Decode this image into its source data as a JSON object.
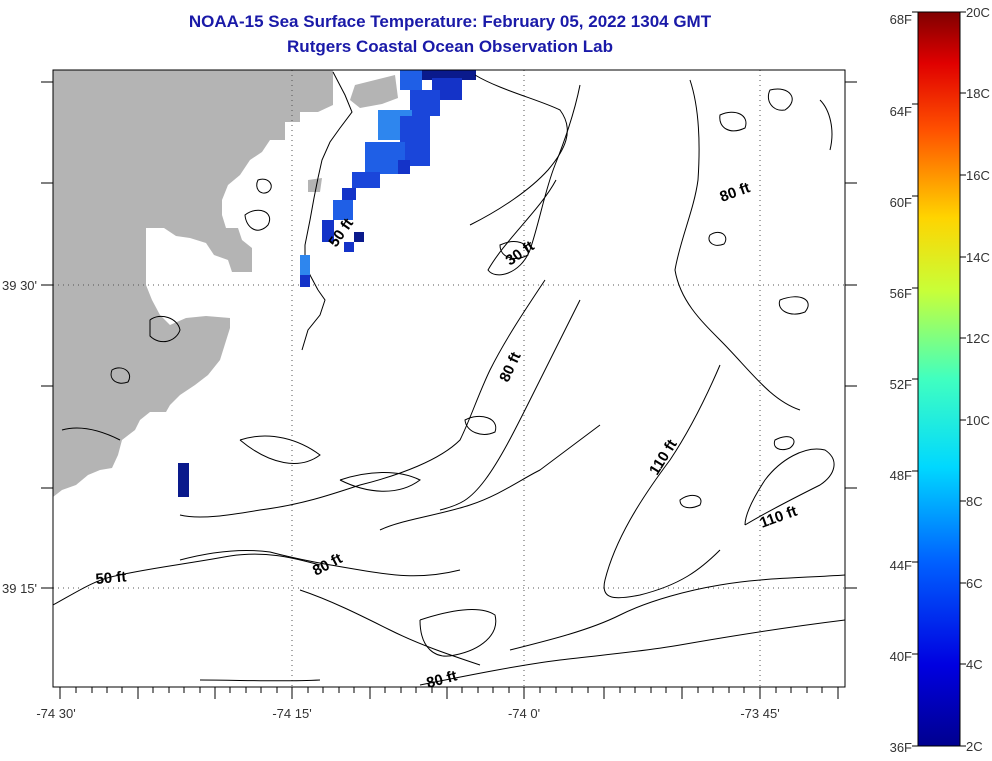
{
  "title": "NOAA-15 Sea Surface Temperature:  February 05, 2022 1304 GMT",
  "subtitle": "Rutgers Coastal Ocean Observation Lab",
  "lat_labels": [
    "39 30'",
    "39 15'"
  ],
  "lon_labels": [
    "-74 30'",
    "-74 15'",
    "-74 0'",
    "-73 45'"
  ],
  "contour_labels": [
    "80 ft",
    "30 ft",
    "50 ft",
    "80 ft",
    "110 ft",
    "110 ft",
    "50 ft",
    "80 ft",
    "80 ft"
  ],
  "colorbar": {
    "fahrenheit_labels": [
      "68F",
      "64F",
      "60F",
      "56F",
      "52F",
      "48F",
      "44F",
      "40F",
      "36F"
    ],
    "celsius_labels": [
      "20C",
      "18C",
      "16C",
      "14C",
      "12C",
      "10C",
      "8C",
      "6C",
      "4C",
      "2C"
    ]
  },
  "colors": {
    "land": "#b4b4b4",
    "title": "#1a1aa8",
    "sst_cold": "#0a1a8c",
    "sst_mid": "#1f5fe6",
    "sst_warm": "#2e86ee"
  }
}
